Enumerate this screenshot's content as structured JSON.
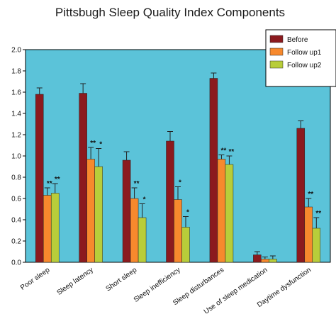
{
  "chart_data": {
    "type": "bar",
    "title": "Pittsbugh Sleep Quality Index Components",
    "xlabel": "",
    "ylabel": "",
    "ylim": [
      0,
      2.0
    ],
    "yticks": [
      "0.0",
      "0.2",
      "0.4",
      "0.6",
      "0.8",
      "1.0",
      "1.2",
      "1.4",
      "1.6",
      "1.8",
      "2.0"
    ],
    "categories": [
      "Poor sleep",
      "Sleep latency",
      "Short sleep",
      "Sleep inefficiency",
      "Sleep disturbances",
      "Use of sleep medication",
      "Daytime dysfunction"
    ],
    "series": [
      {
        "name": "Before",
        "color": "#8b1a1e",
        "values": [
          1.58,
          1.59,
          0.96,
          1.14,
          1.73,
          0.07,
          1.26
        ],
        "errors": [
          0.06,
          0.09,
          0.08,
          0.09,
          0.05,
          0.03,
          0.07
        ]
      },
      {
        "name": "Follow up1",
        "color": "#f7892d",
        "values": [
          0.63,
          0.97,
          0.6,
          0.59,
          0.97,
          0.03,
          0.52
        ],
        "errors": [
          0.07,
          0.11,
          0.1,
          0.12,
          0.04,
          0.02,
          0.08
        ]
      },
      {
        "name": "Follow up2",
        "color": "#b8cd3a",
        "values": [
          0.65,
          0.9,
          0.42,
          0.33,
          0.92,
          0.03,
          0.32
        ],
        "errors": [
          0.09,
          0.17,
          0.13,
          0.1,
          0.08,
          0.03,
          0.1
        ]
      }
    ],
    "significance": [
      {
        "category": 0,
        "series": 1,
        "label": "**"
      },
      {
        "category": 0,
        "series": 2,
        "label": "**"
      },
      {
        "category": 1,
        "series": 1,
        "label": "**"
      },
      {
        "category": 1,
        "series": 2,
        "label": "*"
      },
      {
        "category": 2,
        "series": 1,
        "label": "**"
      },
      {
        "category": 2,
        "series": 2,
        "label": "*"
      },
      {
        "category": 3,
        "series": 1,
        "label": "*"
      },
      {
        "category": 3,
        "series": 2,
        "label": "*"
      },
      {
        "category": 4,
        "series": 1,
        "label": "**"
      },
      {
        "category": 4,
        "series": 2,
        "label": "**"
      },
      {
        "category": 6,
        "series": 1,
        "label": "**"
      },
      {
        "category": 6,
        "series": 2,
        "label": "**"
      }
    ],
    "plot_background": "#5bc3d9",
    "grid": false,
    "legend_position": "top-right"
  }
}
